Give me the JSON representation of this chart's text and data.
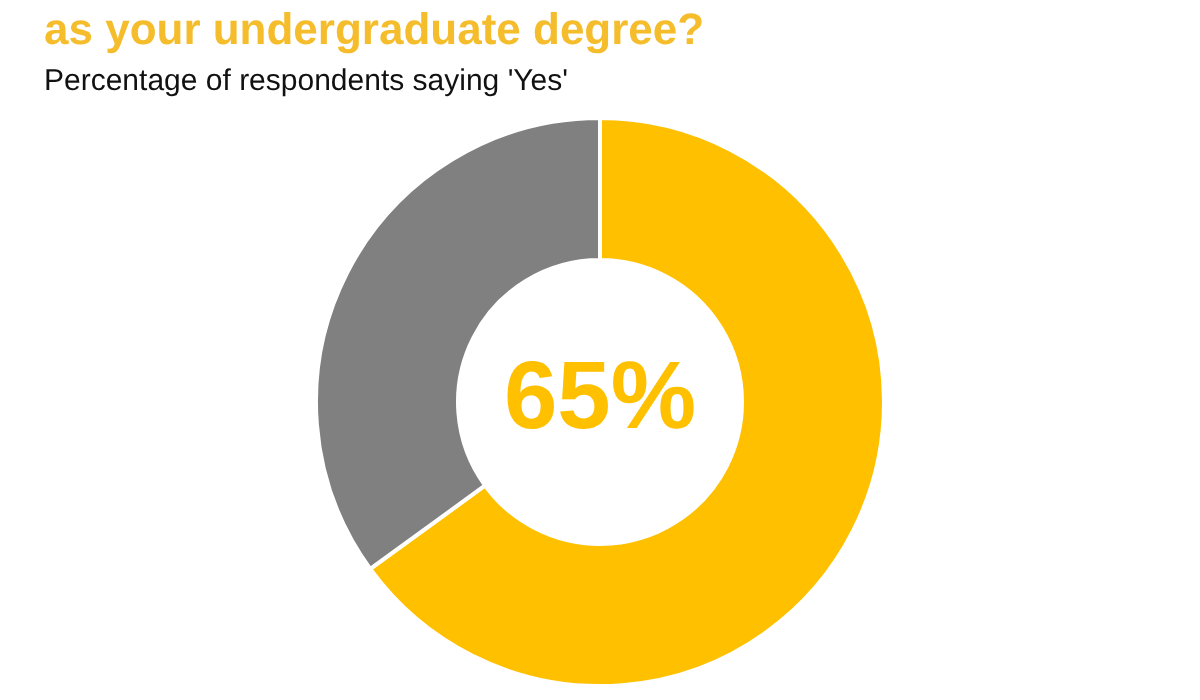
{
  "chart_data": {
    "type": "donut",
    "title": "as your undergraduate degree?",
    "subtitle": "Percentage of respondents saying 'Yes'",
    "categories": [
      null,
      null
    ],
    "values": [
      65,
      35
    ],
    "colors": [
      "#ffc000",
      "#808080"
    ],
    "value_labels": [
      "65%",
      null
    ],
    "legend": false
  }
}
